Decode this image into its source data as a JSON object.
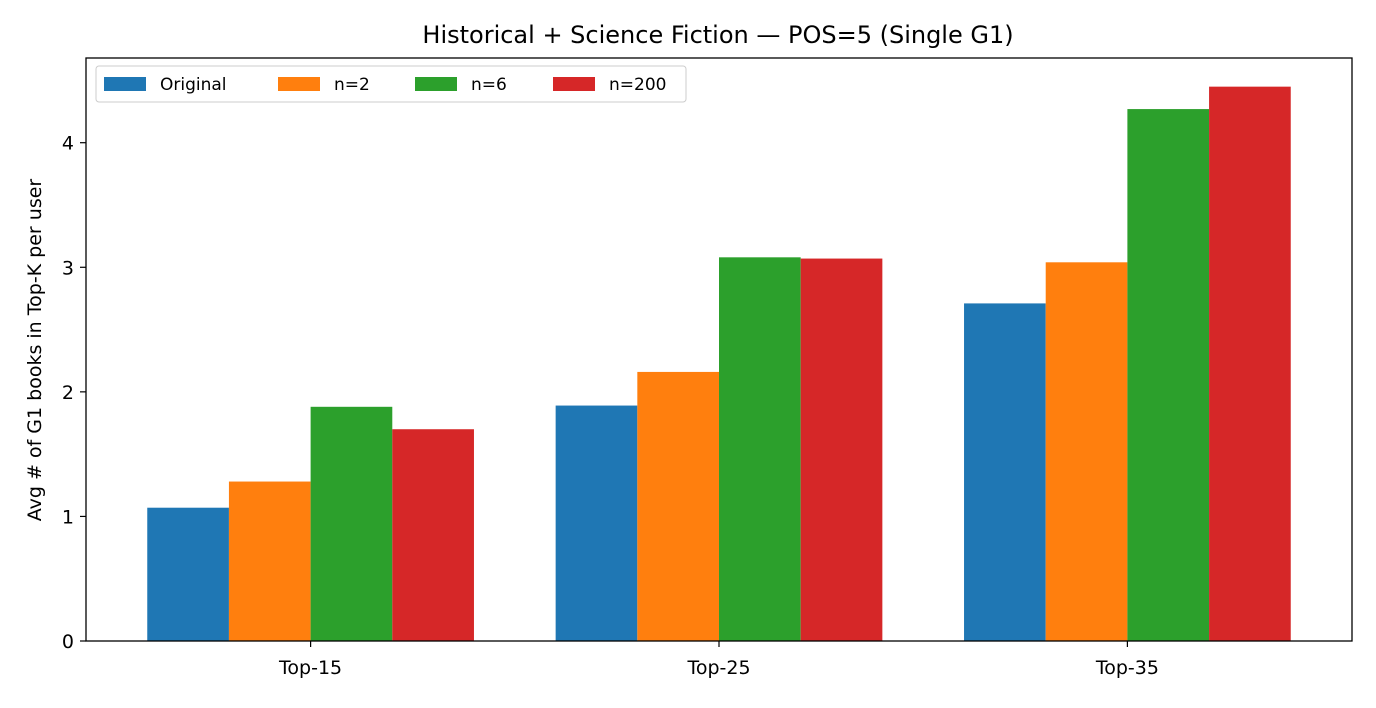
{
  "chart_data": {
    "type": "bar",
    "title": "Historical + Science Fiction — POS=5 (Single G1)",
    "xlabel": "",
    "ylabel": "Avg # of G1 books in Top-K per user",
    "categories": [
      "Top-15",
      "Top-25",
      "Top-35"
    ],
    "series": [
      {
        "name": "Original",
        "color": "#1f77b4",
        "values": [
          1.07,
          1.89,
          2.71
        ]
      },
      {
        "name": "n=2",
        "color": "#ff7f0e",
        "values": [
          1.28,
          2.16,
          3.04
        ]
      },
      {
        "name": "n=6",
        "color": "#2ca02c",
        "values": [
          1.88,
          3.08,
          4.27
        ]
      },
      {
        "name": "n=200",
        "color": "#d62728",
        "values": [
          1.7,
          3.07,
          4.45
        ]
      }
    ],
    "ylim": [
      0,
      4.68
    ],
    "yticks": [
      "0",
      "1",
      "2",
      "3",
      "4"
    ],
    "grid": false,
    "legend_position": "top-left",
    "legend_columns": 4
  }
}
